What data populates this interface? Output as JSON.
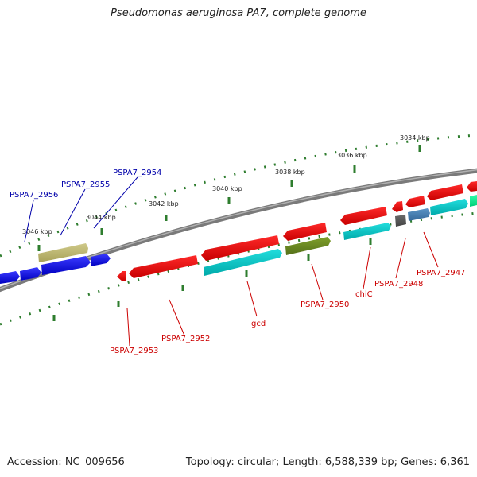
{
  "title": "Pseudomonas aeruginosa PA7, complete genome",
  "footer": {
    "accession": "Accession: NC_009656",
    "summary": "Topology: circular; Length: 6,588,339 bp; Genes: 6,361"
  },
  "colors": {
    "backbone": "#808080",
    "ruler_tick": "#2e7d2e",
    "label_forward": "#0000aa",
    "label_reverse": "#cc0000",
    "gene_blue": "#0000ee",
    "gene_red": "#ee0000",
    "gene_cyan": "#00cccc",
    "gene_olive": "#6b8e23",
    "gene_khaki": "#bdb76b",
    "gene_steel": "#4682b4",
    "gene_gray": "#555555",
    "gene_green": "#00ee88"
  },
  "kbp_labels": [
    "3034 kbp",
    "3036 kbp",
    "3038 kbp",
    "3040 kbp",
    "3042 kbp",
    "3044 kbp",
    "3046 kbp"
  ],
  "gene_labels_forward": [
    "PSPA7_2956",
    "PSPA7_2955",
    "PSPA7_2954"
  ],
  "gene_labels_reverse": [
    "PSPA7_2953",
    "PSPA7_2952",
    "gcd",
    "PSPA7_2950",
    "chiC",
    "PSPA7_2948",
    "PSPA7_2947"
  ]
}
